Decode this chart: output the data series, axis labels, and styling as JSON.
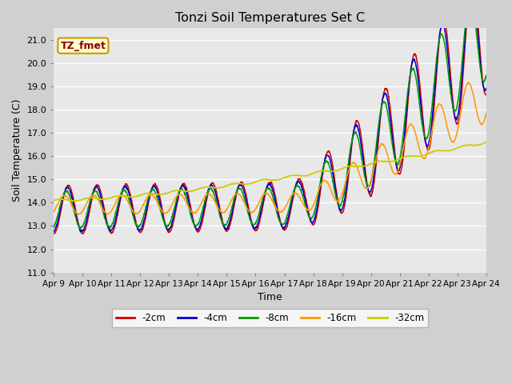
{
  "title": "Tonzi Soil Temperatures Set C",
  "xlabel": "Time",
  "ylabel": "Soil Temperature (C)",
  "ylim": [
    11.0,
    21.5
  ],
  "yticks": [
    11.0,
    12.0,
    13.0,
    14.0,
    15.0,
    16.0,
    17.0,
    18.0,
    19.0,
    20.0,
    21.0
  ],
  "x_labels": [
    "Apr 9",
    "Apr 10",
    "Apr 11",
    "Apr 12",
    "Apr 13",
    "Apr 14",
    "Apr 15",
    "Apr 16",
    "Apr 17",
    "Apr 18",
    "Apr 19",
    "Apr 20",
    "Apr 21",
    "Apr 22",
    "Apr 23",
    "Apr 24"
  ],
  "series_colors": [
    "#cc0000",
    "#0000cc",
    "#009900",
    "#ff9900",
    "#cccc00"
  ],
  "series_labels": [
    "-2cm",
    "-4cm",
    "-8cm",
    "-16cm",
    "-32cm"
  ],
  "legend_label": "TZ_fmet",
  "legend_box_facecolor": "#ffffcc",
  "legend_box_edgecolor": "#cc9900",
  "fig_facecolor": "#d0d0d0",
  "ax_facecolor": "#e8e8e8",
  "grid_color": "#ffffff",
  "n_points": 1500,
  "days": 15
}
